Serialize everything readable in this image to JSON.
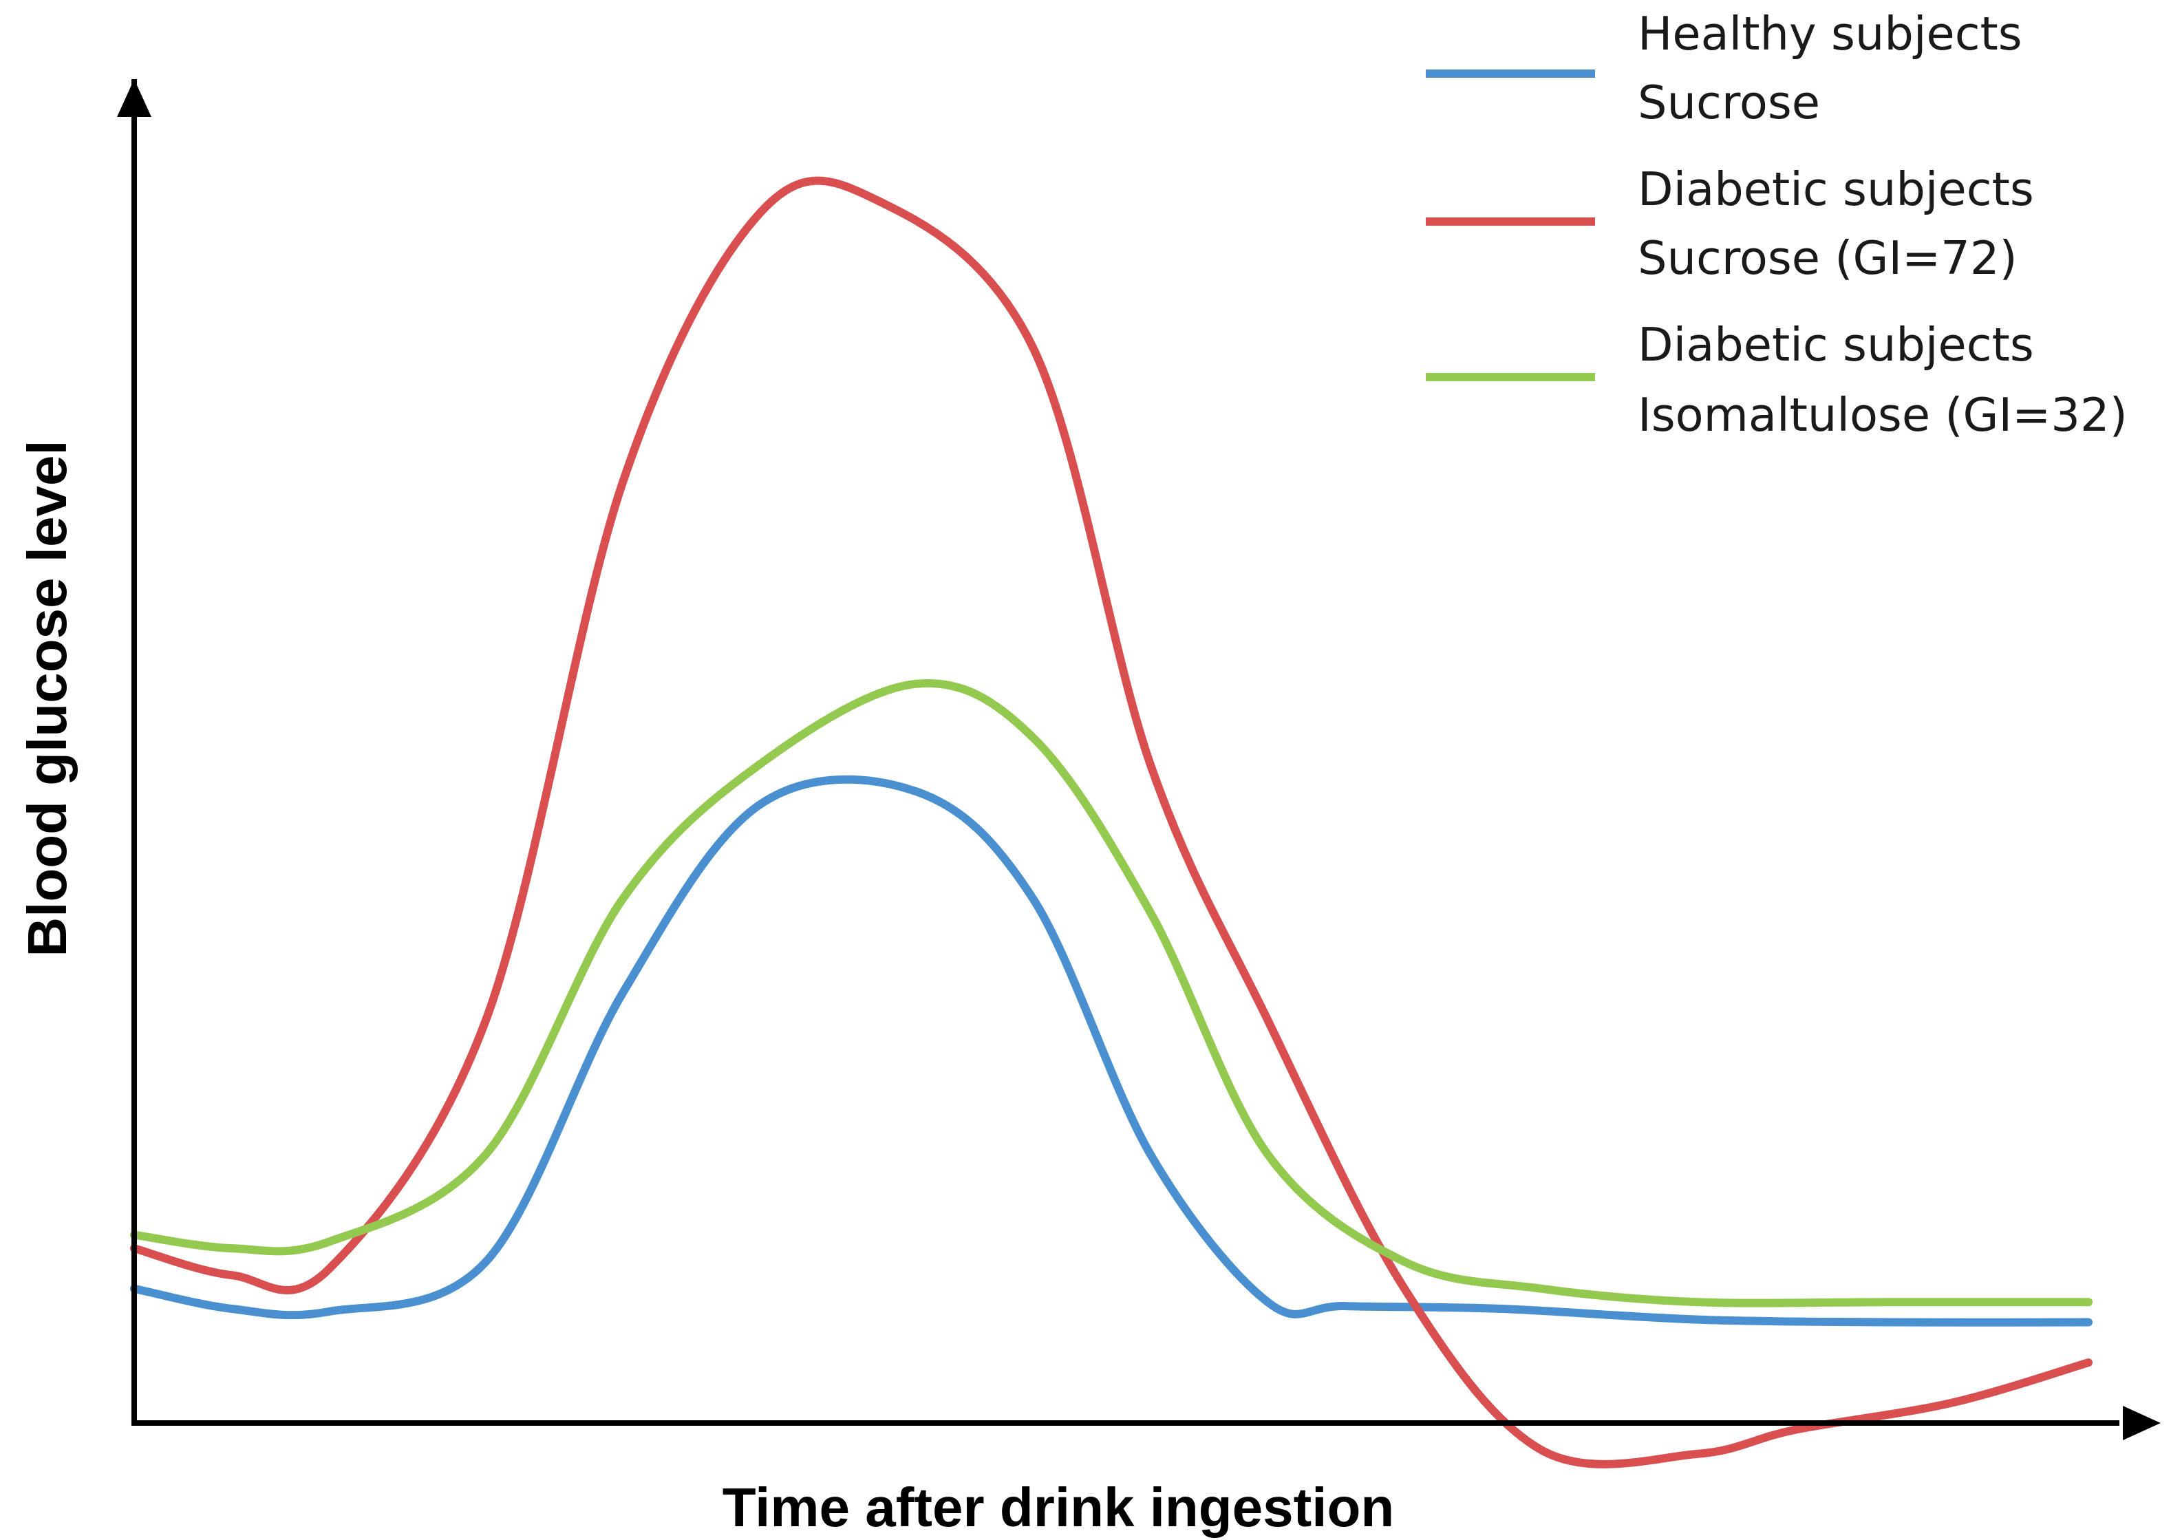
{
  "chart_data": {
    "type": "line",
    "title": "",
    "xlabel": "Time after drink ingestion",
    "ylabel": "Blood glucose level",
    "x_ticks": [],
    "y_ticks": [],
    "grid": false,
    "legend_position": "top-right",
    "x_range": [
      0,
      100
    ],
    "y_range": [
      0,
      100
    ],
    "series": [
      {
        "name_line1": "Healthy subjects",
        "name_line2": "Sucrose",
        "color": "#4a90d0",
        "x": [
          0,
          5,
          10,
          18,
          25,
          32,
          40,
          46,
          52,
          58,
          62,
          70,
          80,
          90,
          100
        ],
        "y": [
          10,
          8.5,
          8.3,
          12,
          32,
          46,
          47,
          39,
          20,
          9,
          8.7,
          8.5,
          7.7,
          7.5,
          7.5
        ]
      },
      {
        "name_line1": "Diabetic subjects",
        "name_line2": "Sucrose (GI=72)",
        "color": "#d94f4f",
        "x": [
          0,
          5,
          10,
          18,
          25,
          32,
          38,
          46,
          52,
          58,
          65,
          72,
          80,
          85,
          93,
          100
        ],
        "y": [
          13,
          11,
          11.5,
          30,
          70,
          90,
          91,
          80,
          49,
          30,
          10,
          -2,
          -2.3,
          -0.5,
          1.5,
          4.5
        ]
      },
      {
        "name_line1": "Diabetic subjects",
        "name_line2": "Isomaltulose (GI=32)",
        "color": "#93c94f",
        "x": [
          0,
          5,
          10,
          18,
          25,
          32,
          40,
          46,
          52,
          58,
          65,
          72,
          80,
          90,
          100
        ],
        "y": [
          14,
          13,
          13.5,
          20,
          39,
          49,
          55,
          51,
          38,
          20,
          12,
          10,
          9,
          9,
          9
        ]
      }
    ]
  }
}
